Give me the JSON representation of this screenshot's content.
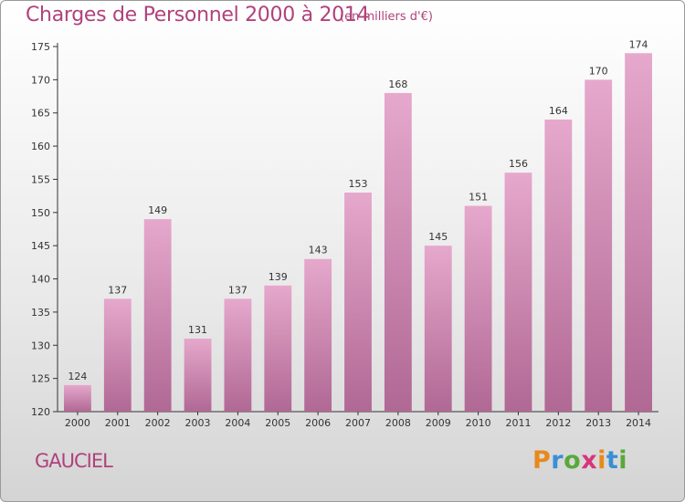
{
  "title": "Charges de Personnel 2000 à 2014",
  "subtitle": "(en milliers d'€)",
  "commune": "GAUCIEL",
  "logo": {
    "letters": [
      "P",
      "r",
      "o",
      "x",
      "i",
      "t",
      "i"
    ],
    "colors": [
      "#e8891c",
      "#3a8fd6",
      "#5aa83a",
      "#d8367a",
      "#e8891c",
      "#3a8fd6",
      "#5aa83a"
    ]
  },
  "colors": {
    "bar_light": "#e6a8cc",
    "bar_dark": "#b06894",
    "title": "#b0427c"
  },
  "chart_data": {
    "type": "bar",
    "categories": [
      "2000",
      "2001",
      "2002",
      "2003",
      "2004",
      "2005",
      "2006",
      "2007",
      "2008",
      "2009",
      "2010",
      "2011",
      "2012",
      "2013",
      "2014"
    ],
    "values": [
      124,
      137,
      149,
      131,
      137,
      139,
      143,
      153,
      168,
      145,
      151,
      156,
      164,
      170,
      174
    ],
    "ylim": [
      120,
      175
    ],
    "yticks": [
      120,
      125,
      130,
      135,
      140,
      145,
      150,
      155,
      160,
      165,
      170,
      175
    ],
    "grid": false
  }
}
